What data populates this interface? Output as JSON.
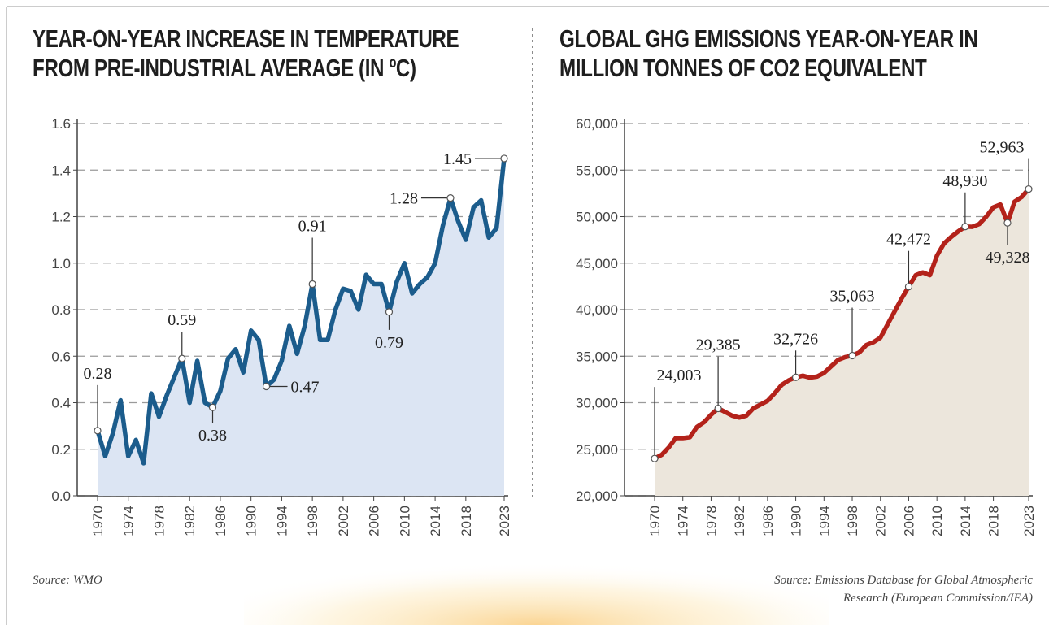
{
  "chart_data": [
    {
      "type": "line",
      "title": "YEAR-ON-YEAR INCREASE IN TEMPERATURE FROM PRE-INDUSTRIAL AVERAGE (IN ºC)",
      "source": "Source: WMO",
      "x": [
        1970,
        1971,
        1972,
        1973,
        1974,
        1975,
        1976,
        1977,
        1978,
        1979,
        1980,
        1981,
        1982,
        1983,
        1984,
        1985,
        1986,
        1987,
        1988,
        1989,
        1990,
        1991,
        1992,
        1993,
        1994,
        1995,
        1996,
        1997,
        1998,
        1999,
        2000,
        2001,
        2002,
        2003,
        2004,
        2005,
        2006,
        2007,
        2008,
        2009,
        2010,
        2011,
        2012,
        2013,
        2014,
        2015,
        2016,
        2017,
        2018,
        2019,
        2020,
        2021,
        2022,
        2023
      ],
      "series": [
        {
          "name": "Temperature increase",
          "color": "#1b5c8c",
          "fill": "#dce5f3",
          "values": [
            0.28,
            0.17,
            0.27,
            0.41,
            0.17,
            0.24,
            0.14,
            0.44,
            0.34,
            0.43,
            0.51,
            0.59,
            0.4,
            0.58,
            0.4,
            0.38,
            0.45,
            0.59,
            0.63,
            0.53,
            0.71,
            0.67,
            0.47,
            0.5,
            0.58,
            0.73,
            0.61,
            0.73,
            0.91,
            0.67,
            0.67,
            0.8,
            0.89,
            0.88,
            0.8,
            0.95,
            0.91,
            0.91,
            0.79,
            0.92,
            1.0,
            0.87,
            0.91,
            0.94,
            1.0,
            1.16,
            1.28,
            1.18,
            1.1,
            1.24,
            1.27,
            1.11,
            1.15,
            1.45
          ]
        }
      ],
      "annotations": [
        {
          "x": 1970,
          "value": 0.28
        },
        {
          "x": 1981,
          "value": 0.59
        },
        {
          "x": 1985,
          "value": 0.38
        },
        {
          "x": 1992,
          "value": 0.47
        },
        {
          "x": 1998,
          "value": 0.91
        },
        {
          "x": 2008,
          "value": 0.79
        },
        {
          "x": 2016,
          "value": 1.28
        },
        {
          "x": 2023,
          "value": 1.45
        }
      ],
      "xlim": [
        1970,
        2023
      ],
      "xticks": [
        1970,
        1974,
        1978,
        1982,
        1986,
        1990,
        1994,
        1998,
        2002,
        2006,
        2010,
        2014,
        2018,
        2023
      ],
      "ylim": [
        0,
        1.6
      ],
      "yticks": [
        {
          "value": 0,
          "label": "0.0"
        },
        0.2,
        0.4,
        0.6,
        0.8,
        {
          "value": 1,
          "label": "1.0"
        },
        1.2,
        1.4,
        1.6
      ],
      "grid": true
    },
    {
      "type": "line",
      "title": "GLOBAL GHG EMISSIONS YEAR-ON-YEAR IN MILLION TONNES OF CO2 EQUIVALENT",
      "source": "Source: Emissions Database for Global Atmospheric Research (European Commission/IEA)",
      "x": [
        1970,
        1971,
        1972,
        1973,
        1974,
        1975,
        1976,
        1977,
        1978,
        1979,
        1980,
        1981,
        1982,
        1983,
        1984,
        1985,
        1986,
        1987,
        1988,
        1989,
        1990,
        1991,
        1992,
        1993,
        1994,
        1995,
        1996,
        1997,
        1998,
        1999,
        2000,
        2001,
        2002,
        2003,
        2004,
        2005,
        2006,
        2007,
        2008,
        2009,
        2010,
        2011,
        2012,
        2013,
        2014,
        2015,
        2016,
        2017,
        2018,
        2019,
        2020,
        2021,
        2022,
        2023
      ],
      "series": [
        {
          "name": "GHG emissions",
          "color": "#b3221a",
          "fill": "#ece6dc",
          "values": [
            24003,
            24400,
            25200,
            26200,
            26200,
            26300,
            27400,
            27900,
            28700,
            29385,
            29000,
            28600,
            28400,
            28600,
            29400,
            29800,
            30200,
            31000,
            31900,
            32400,
            32726,
            32900,
            32700,
            32800,
            33200,
            33900,
            34600,
            34900,
            35063,
            35400,
            36200,
            36500,
            37000,
            38400,
            39800,
            41200,
            42472,
            43700,
            44000,
            43700,
            45800,
            47100,
            47800,
            48400,
            48930,
            48900,
            49200,
            50000,
            51000,
            51300,
            49328,
            51600,
            52100,
            52963
          ]
        }
      ],
      "annotations": [
        {
          "x": 1970,
          "value": 24003,
          "label": "24,003"
        },
        {
          "x": 1979,
          "value": 29385,
          "label": "29,385"
        },
        {
          "x": 1990,
          "value": 32726,
          "label": "32,726"
        },
        {
          "x": 1998,
          "value": 35063,
          "label": "35,063"
        },
        {
          "x": 2006,
          "value": 42472,
          "label": "42,472"
        },
        {
          "x": 2014,
          "value": 48930,
          "label": "48,930"
        },
        {
          "x": 2020,
          "value": 49328,
          "label": "49,328"
        },
        {
          "x": 2023,
          "value": 52963,
          "label": "52,963"
        }
      ],
      "xlim": [
        1970,
        2023
      ],
      "xticks": [
        1970,
        1974,
        1978,
        1982,
        1986,
        1990,
        1994,
        1998,
        2002,
        2006,
        2010,
        2014,
        2018,
        2023
      ],
      "ylim": [
        20000,
        60000
      ],
      "yticks": [
        {
          "value": 20000,
          "label": "20,000"
        },
        {
          "value": 25000,
          "label": "25,000"
        },
        {
          "value": 30000,
          "label": "30,000"
        },
        {
          "value": 35000,
          "label": "35,000"
        },
        {
          "value": 40000,
          "label": "40,000"
        },
        {
          "value": 45000,
          "label": "45,000"
        },
        {
          "value": 50000,
          "label": "50,000"
        },
        {
          "value": 55000,
          "label": "55,000"
        },
        {
          "value": 60000,
          "label": "60,000"
        }
      ],
      "grid": true
    }
  ]
}
